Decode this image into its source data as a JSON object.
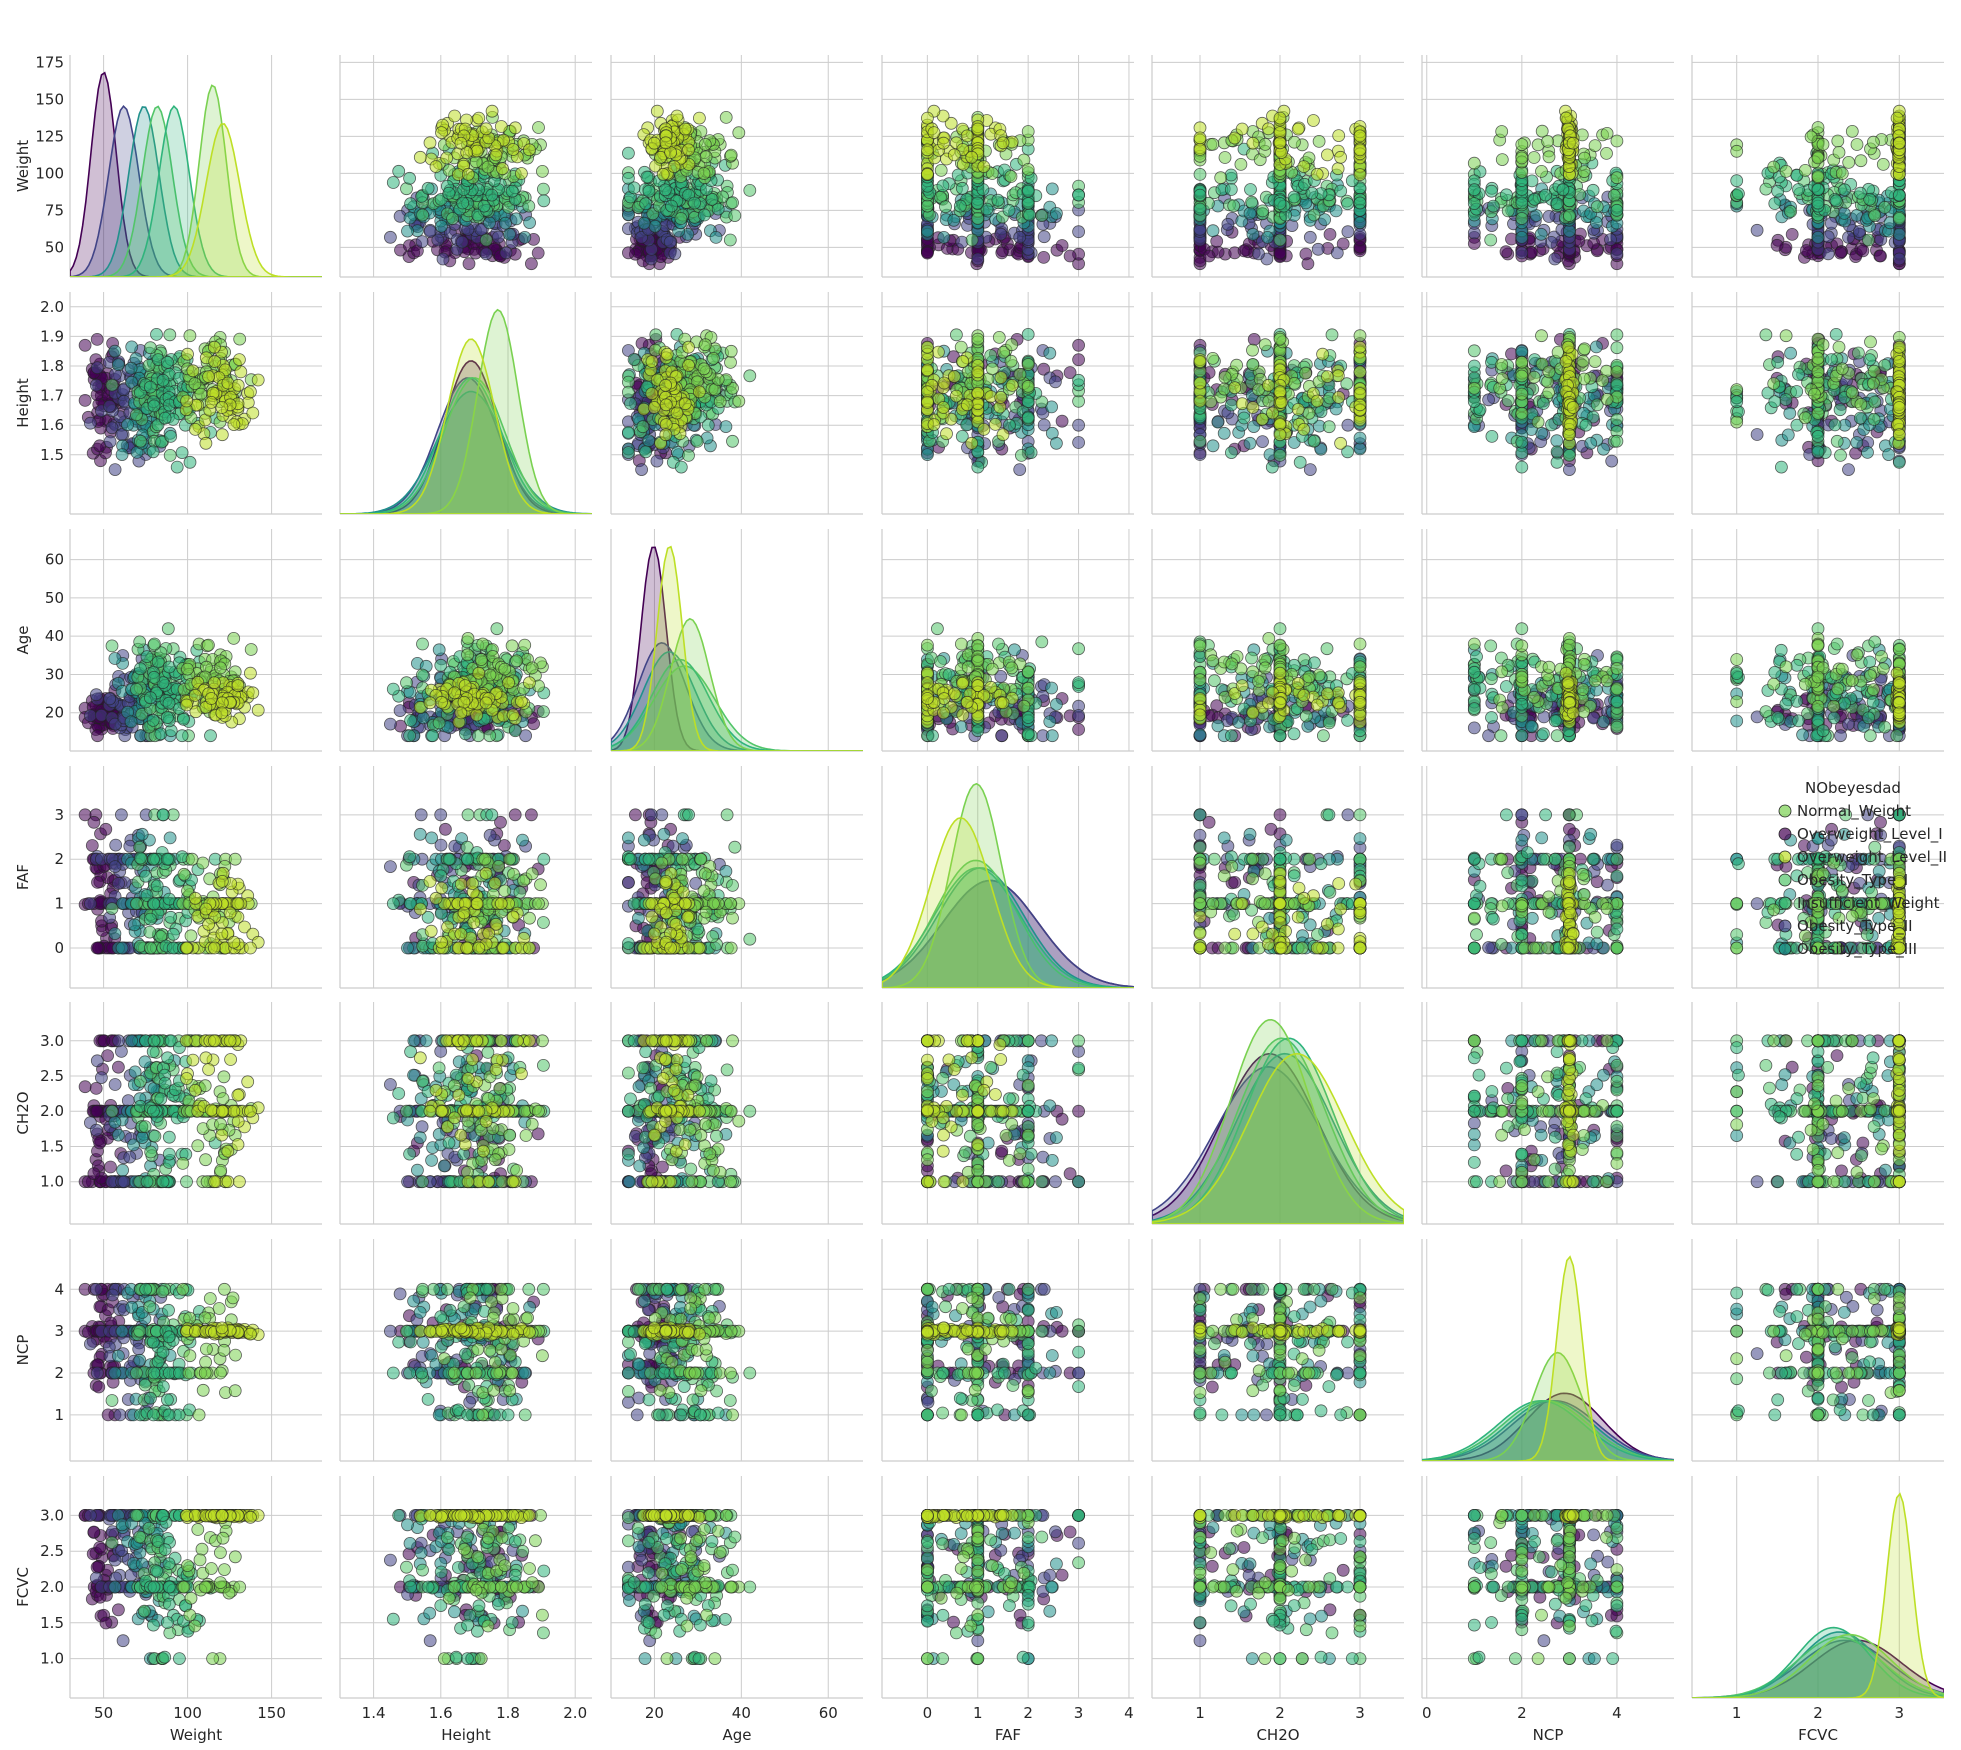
{
  "chart_data": {
    "type": "scatter",
    "kind": "pairplot",
    "variables": [
      "Weight",
      "Height",
      "Age",
      "FAF",
      "CH2O",
      "NCP",
      "FCVC"
    ],
    "diagonal": "kde",
    "grid": true,
    "axes": {
      "Weight": {
        "range": [
          30,
          180
        ],
        "ticks": [
          50,
          100,
          150
        ],
        "tick_labels": [
          "50",
          "100",
          "150"
        ],
        "ylabel_ticks": [
          50,
          75,
          100,
          125,
          150,
          175
        ],
        "ylabel_tick_labels": [
          "50",
          "75",
          "100",
          "125",
          "150",
          "175"
        ]
      },
      "Height": {
        "range": [
          1.3,
          2.05
        ],
        "ticks": [
          1.4,
          1.6,
          1.8,
          2.0
        ],
        "tick_labels": [
          "1.4",
          "1.6",
          "1.8",
          "2.0"
        ],
        "ylabel_ticks": [
          1.5,
          1.6,
          1.7,
          1.8,
          1.9,
          2.0
        ],
        "ylabel_tick_labels": [
          "1.5",
          "1.6",
          "1.7",
          "1.8",
          "1.9",
          "2.0"
        ]
      },
      "Age": {
        "range": [
          10,
          68
        ],
        "ticks": [
          20,
          40,
          60
        ],
        "tick_labels": [
          "20",
          "40",
          "60"
        ],
        "ylabel_ticks": [
          20,
          30,
          40,
          50,
          60
        ],
        "ylabel_tick_labels": [
          "20",
          "30",
          "40",
          "50",
          "60"
        ]
      },
      "FAF": {
        "range": [
          -0.9,
          4.1
        ],
        "ticks": [
          0,
          1,
          2,
          3,
          4
        ],
        "tick_labels": [
          "0",
          "1",
          "2",
          "3",
          "4"
        ],
        "ylabel_ticks": [
          0,
          1,
          2,
          3
        ],
        "ylabel_tick_labels": [
          "0",
          "1",
          "2",
          "3"
        ]
      },
      "CH2O": {
        "range": [
          0.4,
          3.55
        ],
        "ticks": [
          1,
          2,
          3
        ],
        "tick_labels": [
          "1",
          "2",
          "3"
        ],
        "ylabel_ticks": [
          1.0,
          1.5,
          2.0,
          2.5,
          3.0
        ],
        "ylabel_tick_labels": [
          "1.0",
          "1.5",
          "2.0",
          "2.5",
          "3.0"
        ]
      },
      "NCP": {
        "range": [
          -0.1,
          5.2
        ],
        "ticks": [
          0,
          2,
          4
        ],
        "tick_labels": [
          "0",
          "2",
          "4"
        ],
        "ylabel_ticks": [
          1,
          2,
          3,
          4
        ],
        "ylabel_tick_labels": [
          "1",
          "2",
          "3",
          "4"
        ]
      },
      "FCVC": {
        "range": [
          0.45,
          3.55
        ],
        "ticks": [
          1,
          2,
          3
        ],
        "tick_labels": [
          "1",
          "2",
          "3"
        ],
        "ylabel_ticks": [
          1.0,
          1.5,
          2.0,
          2.5,
          3.0
        ],
        "ylabel_tick_labels": [
          "1.0",
          "1.5",
          "2.0",
          "2.5",
          "3.0"
        ]
      }
    },
    "legend": {
      "placement": "right of FAF row, last column",
      "entries": [
        {
          "name": "Obesity_Type_II",
          "color": "#7ad151"
        },
        {
          "name": "Insufficient_Weight",
          "color": "#440154"
        },
        {
          "name": "Obesity_Type_III",
          "color": "#bddf26"
        },
        {
          "name": "Overweight_Level_II",
          "color": "#52c569"
        },
        {
          "name": "Obesity_Type_I",
          "color": "#2fb47c"
        },
        {
          "name": "Normal_Weight",
          "color": "#414487"
        },
        {
          "name": "Overweight_Level_I",
          "color": "#21918c"
        }
      ],
      "visible_labels": [
        "NObeyesdad",
        "Normal_Weight",
        "Overweight_Level_I",
        "Overweight_Level_II",
        "Obesity_Type_I",
        "Insufficient_Weight",
        "Obesity_Type_II",
        "Obesity_Type_III"
      ]
    },
    "groups": [
      {
        "name": "Insufficient_Weight",
        "color": "#440154",
        "mean": {
          "Weight": 50,
          "Height": 1.69,
          "Age": 19.8,
          "FAF": 1.25,
          "CH2O": 1.87,
          "NCP": 2.9,
          "FCVC": 2.48
        },
        "sd": {
          "Weight": 6,
          "Height": 0.08,
          "Age": 2.6,
          "FAF": 0.95,
          "CH2O": 0.6,
          "NCP": 0.8,
          "FCVC": 0.55
        }
      },
      {
        "name": "Normal_Weight",
        "color": "#414487",
        "mean": {
          "Weight": 62,
          "Height": 1.68,
          "Age": 21.7,
          "FAF": 1.25,
          "CH2O": 1.85,
          "NCP": 2.7,
          "FCVC": 2.33
        },
        "sd": {
          "Weight": 9,
          "Height": 0.09,
          "Age": 5.5,
          "FAF": 0.95,
          "CH2O": 0.65,
          "NCP": 0.9,
          "FCVC": 0.55
        }
      },
      {
        "name": "Overweight_Level_I",
        "color": "#21918c",
        "mean": {
          "Weight": 74,
          "Height": 1.69,
          "Age": 23.4,
          "FAF": 1.06,
          "CH2O": 2.06,
          "NCP": 2.6,
          "FCVC": 2.26
        },
        "sd": {
          "Weight": 9,
          "Height": 0.1,
          "Age": 6.0,
          "FAF": 0.85,
          "CH2O": 0.6,
          "NCP": 0.9,
          "FCVC": 0.48
        }
      },
      {
        "name": "Overweight_Level_II",
        "color": "#52c569",
        "mean": {
          "Weight": 82,
          "Height": 1.7,
          "Age": 26.9,
          "FAF": 0.96,
          "CH2O": 2.02,
          "NCP": 2.5,
          "FCVC": 2.26
        },
        "sd": {
          "Weight": 9,
          "Height": 0.09,
          "Age": 7.0,
          "FAF": 0.8,
          "CH2O": 0.55,
          "NCP": 0.9,
          "FCVC": 0.52
        }
      },
      {
        "name": "Obesity_Type_I",
        "color": "#2fb47c",
        "mean": {
          "Weight": 92,
          "Height": 1.69,
          "Age": 25.9,
          "FAF": 0.99,
          "CH2O": 2.11,
          "NCP": 2.4,
          "FCVC": 2.19
        },
        "sd": {
          "Weight": 9,
          "Height": 0.09,
          "Age": 6.5,
          "FAF": 0.85,
          "CH2O": 0.55,
          "NCP": 0.9,
          "FCVC": 0.45
        }
      },
      {
        "name": "Obesity_Type_II",
        "color": "#7ad151",
        "mean": {
          "Weight": 115,
          "Height": 1.77,
          "Age": 28.2,
          "FAF": 0.97,
          "CH2O": 1.88,
          "NCP": 2.75,
          "FCVC": 2.39
        },
        "sd": {
          "Weight": 8,
          "Height": 0.06,
          "Age": 4.5,
          "FAF": 0.5,
          "CH2O": 0.5,
          "NCP": 0.5,
          "FCVC": 0.5
        }
      },
      {
        "name": "Obesity_Type_III",
        "color": "#bddf26",
        "mean": {
          "Weight": 121,
          "Height": 1.69,
          "Age": 23.5,
          "FAF": 0.66,
          "CH2O": 2.21,
          "NCP": 3.0,
          "FCVC": 3.0
        },
        "sd": {
          "Weight": 10,
          "Height": 0.07,
          "Age": 2.5,
          "FAF": 0.6,
          "CH2O": 0.6,
          "NCP": 0.05,
          "FCVC": 0.02
        }
      }
    ]
  }
}
